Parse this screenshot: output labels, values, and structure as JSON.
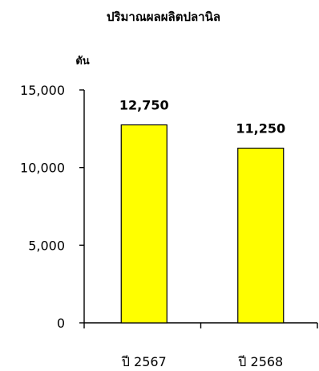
{
  "chart_data": {
    "type": "bar",
    "title": "ปริมาณผลผลิตปลานิล",
    "ylabel": "ตัน",
    "xlabel": "",
    "categories": [
      "ปี 2567",
      "ปี 2568"
    ],
    "values": [
      12750,
      11250
    ],
    "value_labels": [
      "12,750",
      "11,250"
    ],
    "ylim": [
      0,
      15000
    ],
    "yticks": [
      0,
      5000,
      10000,
      15000
    ],
    "ytick_labels": [
      "0",
      "5,000",
      "10,000",
      "15,000"
    ],
    "grid": false,
    "legend": "none",
    "bar_color": "#ffff00",
    "bar_edge_color": "#000000"
  }
}
